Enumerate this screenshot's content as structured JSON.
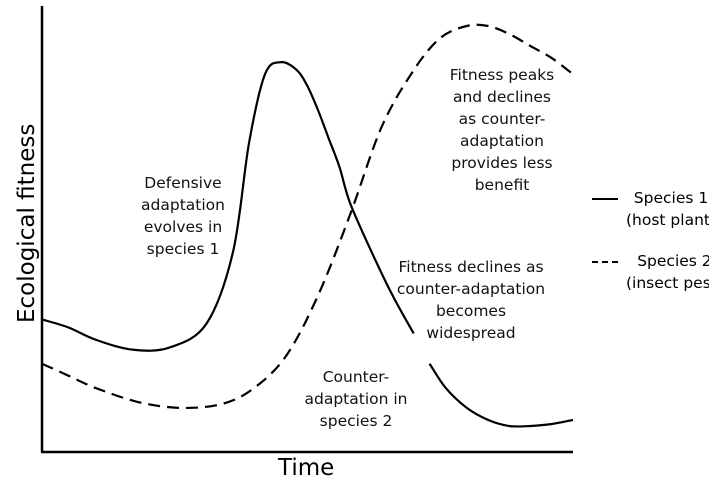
{
  "chart_data": {
    "type": "line",
    "xlabel": "Time",
    "ylabel": "Ecological fitness",
    "xlim": [
      0,
      100
    ],
    "ylim": [
      0,
      100
    ],
    "grid": false,
    "legend_position": "right",
    "series": [
      {
        "name": "Species 1 (host plant)",
        "style": "solid",
        "color": "#000000",
        "x": [
          0,
          5,
          10,
          17,
          24,
          31,
          36,
          39,
          42,
          45,
          48,
          50,
          52,
          54,
          56,
          58,
          62,
          66,
          70
        ],
        "y": [
          28,
          26,
          23,
          20.5,
          21,
          27,
          45,
          72,
          89,
          92,
          90,
          86,
          80,
          73,
          66,
          57,
          45,
          34,
          24.5
        ]
      },
      {
        "name": "Species 1 (host plant)",
        "style": "solid",
        "color": "#000000",
        "x": [
          73,
          76,
          80,
          84,
          88,
          92,
          96,
          100
        ],
        "y": [
          17,
          11,
          6,
          3,
          1.5,
          1.5,
          2,
          3
        ]
      },
      {
        "name": "Species 2 (insect pest)",
        "style": "dashed",
        "color": "#000000",
        "x": [
          0,
          5,
          10,
          18,
          26,
          34,
          40,
          46,
          52,
          58,
          64,
          70,
          75,
          80,
          84,
          88,
          92,
          96,
          100
        ],
        "y": [
          17,
          14,
          11,
          7.5,
          6,
          7,
          11,
          19,
          34,
          54,
          76,
          90,
          98,
          101,
          101,
          99,
          96,
          93,
          89
        ]
      }
    ],
    "annotations": [
      {
        "id": "defensive",
        "lines": [
          "Defensive",
          "adaptation",
          "evolves in",
          "species 1"
        ]
      },
      {
        "id": "peaks",
        "lines": [
          "Fitness peaks",
          "and declines",
          "as counter-",
          "adaptation",
          "provides less",
          "benefit"
        ]
      },
      {
        "id": "declines",
        "lines": [
          "Fitness declines as",
          "counter-adaptation",
          "becomes",
          "widespread"
        ]
      },
      {
        "id": "counter",
        "lines": [
          "Counter-",
          "adaptation in",
          "species 2"
        ]
      }
    ],
    "legend": [
      {
        "style": "solid",
        "lines": [
          "Species 1",
          "(host plant)"
        ]
      },
      {
        "style": "dashed",
        "lines": [
          "Species 2",
          "(insect pest)"
        ]
      }
    ]
  }
}
